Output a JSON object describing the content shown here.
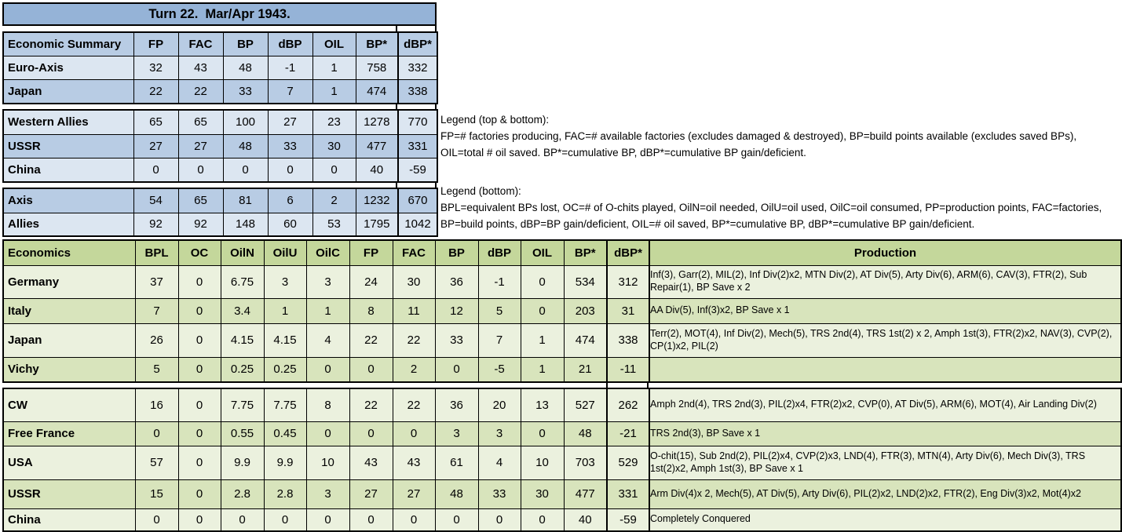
{
  "colors": {
    "border": "#000000",
    "blue_banner": "#95B3D7",
    "blue_header": "#B8CCE4",
    "blue_row_light": "#DCE6F1",
    "blue_row_medium": "#B8CCE4",
    "green_header": "#C4D79B",
    "green_row_light": "#EBF1DE",
    "green_row_medium": "#D8E4BC"
  },
  "top_table": {
    "banner": "Turn 22.  Mar/Apr 1943.",
    "columns": [
      "Economic Summary",
      "FP",
      "FAC",
      "BP",
      "dBP",
      "OIL",
      "BP*",
      "dBP*"
    ],
    "sections": [
      {
        "rows": [
          {
            "label": "Euro-Axis",
            "values": [
              "32",
              "43",
              "48",
              "-1",
              "1",
              "758",
              "332"
            ]
          },
          {
            "label": "Japan",
            "values": [
              "22",
              "22",
              "33",
              "7",
              "1",
              "474",
              "338"
            ]
          }
        ]
      },
      {
        "rows": [
          {
            "label": "Western Allies",
            "values": [
              "65",
              "65",
              "100",
              "27",
              "23",
              "1278",
              "770"
            ]
          },
          {
            "label": "USSR",
            "values": [
              "27",
              "27",
              "48",
              "33",
              "30",
              "477",
              "331"
            ]
          },
          {
            "label": "China",
            "values": [
              "0",
              "0",
              "0",
              "0",
              "0",
              "40",
              "-59"
            ]
          }
        ]
      },
      {
        "rows": [
          {
            "label": "Axis",
            "values": [
              "54",
              "65",
              "81",
              "6",
              "2",
              "1232",
              "670"
            ]
          },
          {
            "label": "Allies",
            "values": [
              "92",
              "92",
              "148",
              "60",
              "53",
              "1795",
              "1042"
            ]
          }
        ]
      }
    ]
  },
  "legends": [
    {
      "title": "Legend (top & bottom):",
      "text": "FP=# factories producing, FAC=# available factories (excludes damaged & destroyed), BP=build points available (excludes saved BPs), OIL=total # oil saved. BP*=cumulative BP, dBP*=cumulative BP gain/deficient."
    },
    {
      "title": "Legend (bottom):",
      "text": "BPL=equivalent BPs lost, OC=# of O-chits played, OilN=oil needed, OilU=oil used, OilC=oil consumed, PP=production points, FAC=factories, BP=build points, dBP=BP gain/deficient, OIL=# oil saved, BP*=cumulative BP, dBP*=cumulative BP gain/deficient."
    }
  ],
  "bottom_table": {
    "columns": [
      "Economics",
      "BPL",
      "OC",
      "OilN",
      "OilU",
      "OilC",
      "FP",
      "FAC",
      "BP",
      "dBP",
      "OIL",
      "BP*",
      "dBP*",
      "Production"
    ],
    "sections": [
      {
        "rows": [
          {
            "label": "Germany",
            "values": [
              "37",
              "0",
              "6.75",
              "3",
              "3",
              "24",
              "30",
              "36",
              "-1",
              "0",
              "534",
              "312"
            ],
            "production": "Inf(3), Garr(2), MIL(2), Inf Div(2)x2, MTN Div(2), AT Div(5), Arty Div(6), ARM(6), CAV(3), FTR(2), Sub Repair(1), BP Save x 2"
          },
          {
            "label": "Italy",
            "values": [
              "7",
              "0",
              "3.4",
              "1",
              "1",
              "8",
              "11",
              "12",
              "5",
              "0",
              "203",
              "31"
            ],
            "production": "AA Div(5), Inf(3)x2, BP Save x 1"
          },
          {
            "label": "Japan",
            "values": [
              "26",
              "0",
              "4.15",
              "4.15",
              "4",
              "22",
              "22",
              "33",
              "7",
              "1",
              "474",
              "338"
            ],
            "production": "Terr(2), MOT(4), Inf Div(2), Mech(5), TRS 2nd(4), TRS 1st(2) x 2, Amph 1st(3), FTR(2)x2, NAV(3), CVP(2), CP(1)x2, PIL(2)"
          },
          {
            "label": "Vichy",
            "values": [
              "5",
              "0",
              "0.25",
              "0.25",
              "0",
              "0",
              "2",
              "0",
              "-5",
              "1",
              "21",
              "-11"
            ],
            "production": ""
          }
        ]
      },
      {
        "rows": [
          {
            "label": "CW",
            "values": [
              "16",
              "0",
              "7.75",
              "7.75",
              "8",
              "22",
              "22",
              "36",
              "20",
              "13",
              "527",
              "262"
            ],
            "production": "Amph 2nd(4), TRS 2nd(3), PIL(2)x4, FTR(2)x2, CVP(0), AT Div(5), ARM(6), MOT(4), Air Landing Div(2)"
          },
          {
            "label": "Free France",
            "values": [
              "0",
              "0",
              "0.55",
              "0.45",
              "0",
              "0",
              "0",
              "3",
              "3",
              "0",
              "48",
              "-21"
            ],
            "production": "TRS 2nd(3), BP Save x 1"
          },
          {
            "label": "USA",
            "values": [
              "57",
              "0",
              "9.9",
              "9.9",
              "10",
              "43",
              "43",
              "61",
              "4",
              "10",
              "703",
              "529"
            ],
            "production": "O-chit(15), Sub 2nd(2), PIL(2)x4, CVP(2)x3, LND(4), FTR(3), MTN(4), Arty Div(6), Mech Div(3), TRS 1st(2)x2, Amph 1st(3), BP Save x 1"
          },
          {
            "label": "USSR",
            "values": [
              "15",
              "0",
              "2.8",
              "2.8",
              "3",
              "27",
              "27",
              "48",
              "33",
              "30",
              "477",
              "331"
            ],
            "production": "Arm Div(4)x 2, Mech(5), AT Div(5), Arty Div(6), PIL(2)x2, LND(2)x2, FTR(2), Eng Div(3)x2, Mot(4)x2"
          },
          {
            "label": "China",
            "values": [
              "0",
              "0",
              "0",
              "0",
              "0",
              "0",
              "0",
              "0",
              "0",
              "0",
              "40",
              "-59"
            ],
            "production": "Completely Conquered"
          }
        ]
      }
    ]
  }
}
